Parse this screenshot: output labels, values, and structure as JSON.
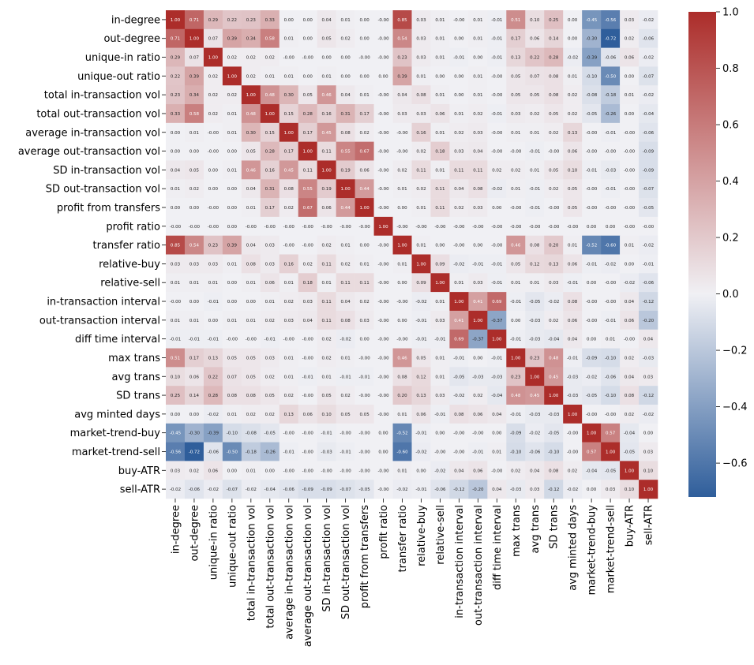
{
  "chart_data": {
    "type": "heatmap",
    "title": "",
    "labels": [
      "in-degree",
      "out-degree",
      "unique-in ratio",
      "unique-out ratio",
      "total in-transaction vol",
      "total out-transaction vol",
      "average in-transaction vol",
      "average out-transaction vol",
      "SD in-transaction vol",
      "SD out-transaction vol",
      "profit from transfers",
      "profit ratio",
      "transfer ratio",
      "relative-buy",
      "relative-sell",
      "in-transaction interval",
      "out-transaction interval",
      "diff time interval",
      "max trans",
      "avg trans",
      "SD trans",
      "avg minted days",
      "market-trend-buy",
      "market-trend-sell",
      "buy-ATR",
      "sell-ATR"
    ],
    "values": [
      [
        "1.00",
        "0.71",
        "0.29",
        "0.22",
        "0.23",
        "0.33",
        "0.00",
        "0.00",
        "0.04",
        "0.01",
        "0.00",
        "-0.00",
        "0.85",
        "0.03",
        "0.01",
        "-0.00",
        "0.01",
        "-0.01",
        "0.51",
        "0.10",
        "0.25",
        "0.00",
        "-0.45",
        "-0.56",
        "0.03",
        "-0.02"
      ],
      [
        "0.71",
        "1.00",
        "0.07",
        "0.39",
        "0.34",
        "0.58",
        "0.01",
        "0.00",
        "0.05",
        "0.02",
        "0.00",
        "-0.00",
        "0.54",
        "0.03",
        "0.01",
        "0.00",
        "0.01",
        "-0.01",
        "0.17",
        "0.06",
        "0.14",
        "0.00",
        "-0.30",
        "-0.72",
        "0.02",
        "-0.06"
      ],
      [
        "0.29",
        "0.07",
        "1.00",
        "0.02",
        "0.02",
        "0.02",
        "-0.00",
        "-0.00",
        "0.00",
        "0.00",
        "-0.00",
        "-0.00",
        "0.23",
        "0.03",
        "0.01",
        "-0.01",
        "0.00",
        "-0.01",
        "0.13",
        "0.22",
        "0.28",
        "-0.02",
        "-0.39",
        "-0.06",
        "0.06",
        "-0.02"
      ],
      [
        "0.22",
        "0.39",
        "0.02",
        "1.00",
        "0.02",
        "0.01",
        "0.01",
        "0.00",
        "0.01",
        "0.00",
        "0.00",
        "0.00",
        "0.39",
        "0.01",
        "0.00",
        "0.00",
        "0.01",
        "-0.00",
        "0.05",
        "0.07",
        "0.08",
        "0.01",
        "-0.10",
        "-0.50",
        "0.00",
        "-0.07"
      ],
      [
        "0.23",
        "0.34",
        "0.02",
        "0.02",
        "1.00",
        "0.48",
        "0.30",
        "0.05",
        "0.46",
        "0.04",
        "0.01",
        "-0.00",
        "0.04",
        "0.08",
        "0.01",
        "0.00",
        "0.01",
        "-0.00",
        "0.05",
        "0.05",
        "0.08",
        "0.02",
        "-0.08",
        "-0.18",
        "0.01",
        "-0.02"
      ],
      [
        "0.33",
        "0.58",
        "0.02",
        "0.01",
        "0.48",
        "1.00",
        "0.15",
        "0.28",
        "0.16",
        "0.31",
        "0.17",
        "-0.00",
        "0.03",
        "0.03",
        "0.06",
        "0.01",
        "0.02",
        "-0.01",
        "0.03",
        "0.02",
        "0.05",
        "0.02",
        "-0.05",
        "-0.26",
        "0.00",
        "-0.04"
      ],
      [
        "0.00",
        "0.01",
        "-0.00",
        "0.01",
        "0.30",
        "0.15",
        "1.00",
        "0.17",
        "0.45",
        "0.08",
        "0.02",
        "-0.00",
        "-0.00",
        "0.16",
        "0.01",
        "0.02",
        "0.03",
        "-0.00",
        "0.01",
        "0.01",
        "0.02",
        "0.13",
        "-0.00",
        "-0.01",
        "-0.00",
        "-0.06"
      ],
      [
        "0.00",
        "0.00",
        "-0.00",
        "0.00",
        "0.05",
        "0.28",
        "0.17",
        "1.00",
        "0.11",
        "0.55",
        "0.67",
        "-0.00",
        "-0.00",
        "0.02",
        "0.18",
        "0.03",
        "0.04",
        "-0.00",
        "-0.00",
        "-0.01",
        "-0.00",
        "0.06",
        "-0.00",
        "-0.00",
        "-0.00",
        "-0.09"
      ],
      [
        "0.04",
        "0.05",
        "0.00",
        "0.01",
        "0.46",
        "0.16",
        "0.45",
        "0.11",
        "1.00",
        "0.19",
        "0.06",
        "-0.00",
        "0.02",
        "0.11",
        "0.01",
        "0.11",
        "0.11",
        "0.02",
        "0.02",
        "0.01",
        "0.05",
        "0.10",
        "-0.01",
        "-0.03",
        "-0.00",
        "-0.09"
      ],
      [
        "0.01",
        "0.02",
        "0.00",
        "0.00",
        "0.04",
        "0.31",
        "0.08",
        "0.55",
        "0.19",
        "1.00",
        "0.44",
        "-0.00",
        "0.01",
        "0.02",
        "0.11",
        "0.04",
        "0.08",
        "-0.02",
        "0.01",
        "-0.01",
        "0.02",
        "0.05",
        "-0.00",
        "-0.01",
        "-0.00",
        "-0.07"
      ],
      [
        "0.00",
        "0.00",
        "-0.00",
        "0.00",
        "0.01",
        "0.17",
        "0.02",
        "0.67",
        "0.06",
        "0.44",
        "1.00",
        "-0.00",
        "0.00",
        "0.01",
        "0.11",
        "0.02",
        "0.03",
        "0.00",
        "-0.00",
        "-0.01",
        "-0.00",
        "0.05",
        "-0.00",
        "-0.00",
        "-0.00",
        "-0.05"
      ],
      [
        "-0.00",
        "-0.00",
        "-0.00",
        "0.00",
        "-0.00",
        "-0.00",
        "-0.00",
        "-0.00",
        "-0.00",
        "-0.00",
        "-0.00",
        "1.00",
        "-0.00",
        "-0.00",
        "-0.00",
        "-0.00",
        "-0.00",
        "-0.00",
        "-0.00",
        "-0.00",
        "-0.00",
        "-0.00",
        "0.00",
        "0.00",
        "-0.00",
        "-0.00"
      ],
      [
        "0.85",
        "0.54",
        "0.23",
        "0.39",
        "0.04",
        "0.03",
        "-0.00",
        "-0.00",
        "0.02",
        "0.01",
        "0.00",
        "-0.00",
        "1.00",
        "0.01",
        "0.00",
        "-0.00",
        "0.00",
        "-0.00",
        "0.46",
        "0.08",
        "0.20",
        "0.01",
        "-0.52",
        "-0.60",
        "0.01",
        "-0.02"
      ],
      [
        "0.03",
        "0.03",
        "0.03",
        "0.01",
        "0.08",
        "0.03",
        "0.16",
        "0.02",
        "0.11",
        "0.02",
        "0.01",
        "-0.00",
        "0.01",
        "1.00",
        "0.09",
        "-0.02",
        "-0.01",
        "-0.01",
        "0.05",
        "0.12",
        "0.13",
        "0.06",
        "-0.01",
        "-0.02",
        "0.00",
        "-0.01"
      ],
      [
        "0.01",
        "0.01",
        "0.01",
        "0.00",
        "0.01",
        "0.06",
        "0.01",
        "0.18",
        "0.01",
        "0.11",
        "0.11",
        "-0.00",
        "0.00",
        "0.09",
        "1.00",
        "0.01",
        "0.03",
        "-0.01",
        "0.01",
        "0.01",
        "0.03",
        "-0.01",
        "0.00",
        "-0.00",
        "-0.02",
        "-0.06"
      ],
      [
        "-0.00",
        "0.00",
        "-0.01",
        "0.00",
        "0.00",
        "0.01",
        "0.02",
        "0.03",
        "0.11",
        "0.04",
        "0.02",
        "-0.00",
        "-0.00",
        "-0.02",
        "0.01",
        "1.00",
        "0.41",
        "0.69",
        "-0.01",
        "-0.05",
        "-0.02",
        "0.08",
        "-0.00",
        "-0.00",
        "0.04",
        "-0.12"
      ],
      [
        "0.01",
        "0.01",
        "0.00",
        "0.01",
        "0.01",
        "0.02",
        "0.03",
        "0.04",
        "0.11",
        "0.08",
        "0.03",
        "-0.00",
        "0.00",
        "-0.01",
        "0.03",
        "0.41",
        "1.00",
        "-0.37",
        "0.00",
        "-0.03",
        "0.02",
        "0.06",
        "-0.00",
        "-0.01",
        "0.06",
        "-0.20"
      ],
      [
        "-0.01",
        "-0.01",
        "-0.01",
        "-0.00",
        "-0.00",
        "-0.01",
        "-0.00",
        "-0.00",
        "0.02",
        "-0.02",
        "0.00",
        "-0.00",
        "-0.00",
        "-0.01",
        "-0.01",
        "0.69",
        "-0.37",
        "1.00",
        "-0.01",
        "-0.03",
        "-0.04",
        "0.04",
        "0.00",
        "0.01",
        "-0.00",
        "0.04"
      ],
      [
        "0.51",
        "0.17",
        "0.13",
        "0.05",
        "0.05",
        "0.03",
        "0.01",
        "-0.00",
        "0.02",
        "0.01",
        "-0.00",
        "-0.00",
        "0.46",
        "0.05",
        "0.01",
        "-0.01",
        "0.00",
        "-0.01",
        "1.00",
        "0.23",
        "0.48",
        "-0.01",
        "-0.09",
        "-0.10",
        "0.02",
        "-0.03"
      ],
      [
        "0.10",
        "0.06",
        "0.22",
        "0.07",
        "0.05",
        "0.02",
        "0.01",
        "-0.01",
        "0.01",
        "-0.01",
        "-0.01",
        "-0.00",
        "0.08",
        "0.12",
        "0.01",
        "-0.05",
        "-0.03",
        "-0.03",
        "0.23",
        "1.00",
        "0.45",
        "-0.03",
        "-0.02",
        "-0.06",
        "0.04",
        "0.03"
      ],
      [
        "0.25",
        "0.14",
        "0.28",
        "0.08",
        "0.08",
        "0.05",
        "0.02",
        "-0.00",
        "0.05",
        "0.02",
        "-0.00",
        "-0.00",
        "0.20",
        "0.13",
        "0.03",
        "-0.02",
        "0.02",
        "-0.04",
        "0.48",
        "0.45",
        "1.00",
        "-0.03",
        "-0.05",
        "-0.10",
        "0.08",
        "-0.12"
      ],
      [
        "0.00",
        "0.00",
        "-0.02",
        "0.01",
        "0.02",
        "0.02",
        "0.13",
        "0.06",
        "0.10",
        "0.05",
        "0.05",
        "-0.00",
        "0.01",
        "0.06",
        "-0.01",
        "0.08",
        "0.06",
        "0.04",
        "-0.01",
        "-0.03",
        "-0.03",
        "1.00",
        "-0.00",
        "-0.00",
        "0.02",
        "-0.02"
      ],
      [
        "-0.45",
        "-0.30",
        "-0.39",
        "-0.10",
        "-0.08",
        "-0.05",
        "-0.00",
        "-0.00",
        "-0.01",
        "-0.00",
        "-0.00",
        "0.00",
        "-0.52",
        "-0.01",
        "0.00",
        "-0.00",
        "-0.00",
        "0.00",
        "-0.09",
        "-0.02",
        "-0.05",
        "-0.00",
        "1.00",
        "0.57",
        "-0.04",
        "0.00"
      ],
      [
        "-0.56",
        "-0.72",
        "-0.06",
        "-0.50",
        "-0.18",
        "-0.26",
        "-0.01",
        "-0.00",
        "-0.03",
        "-0.01",
        "-0.00",
        "0.00",
        "-0.60",
        "-0.02",
        "-0.00",
        "-0.00",
        "-0.01",
        "0.01",
        "-0.10",
        "-0.06",
        "-0.10",
        "-0.00",
        "0.57",
        "1.00",
        "-0.05",
        "0.03"
      ],
      [
        "0.03",
        "0.02",
        "0.06",
        "0.00",
        "0.01",
        "0.00",
        "-0.00",
        "-0.00",
        "-0.00",
        "-0.00",
        "-0.00",
        "-0.00",
        "0.01",
        "0.00",
        "-0.02",
        "0.04",
        "0.06",
        "-0.00",
        "0.02",
        "0.04",
        "0.08",
        "0.02",
        "-0.04",
        "-0.05",
        "1.00",
        "0.10"
      ],
      [
        "-0.02",
        "-0.06",
        "-0.02",
        "-0.07",
        "-0.02",
        "-0.04",
        "-0.06",
        "-0.09",
        "-0.09",
        "-0.07",
        "-0.05",
        "-0.00",
        "-0.02",
        "-0.01",
        "-0.06",
        "-0.12",
        "-0.20",
        "0.04",
        "-0.03",
        "0.03",
        "-0.12",
        "-0.02",
        "0.00",
        "0.03",
        "0.10",
        "1.00"
      ]
    ],
    "colorbar": {
      "min": -0.72,
      "max": 1.0,
      "ticks": [
        "1.0",
        "0.8",
        "0.6",
        "0.4",
        "0.2",
        "0.0",
        "−0.2",
        "−0.4",
        "−0.6"
      ],
      "colormap": [
        "#2f5e9b",
        "#f0f0f4",
        "#ac2d2a"
      ]
    }
  }
}
